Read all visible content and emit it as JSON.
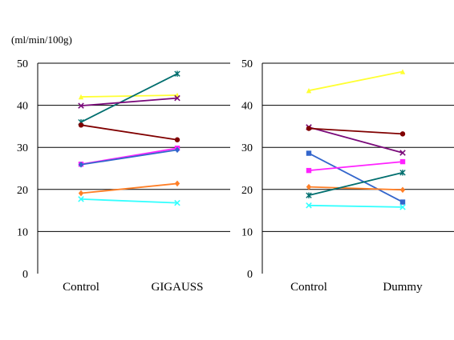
{
  "unit_label": "(ml/min/100g)",
  "chart_data": [
    {
      "type": "line",
      "categories": [
        "Control",
        "GIGAUSS"
      ],
      "ylim": [
        0,
        50
      ],
      "yticks": [
        0,
        10,
        20,
        30,
        40,
        50
      ],
      "ylabel": "(ml/min/100g)",
      "grid": true,
      "series": [
        {
          "color": "#ffff33",
          "marker": "triangle",
          "values": [
            42.0,
            42.4
          ]
        },
        {
          "color": "#006e6e",
          "marker": "star",
          "values": [
            36.0,
            47.5
          ]
        },
        {
          "color": "#7a0a7a",
          "marker": "x",
          "values": [
            39.9,
            41.7
          ]
        },
        {
          "color": "#800000",
          "marker": "circle",
          "values": [
            35.3,
            31.8
          ]
        },
        {
          "color": "#ff22ff",
          "marker": "square",
          "values": [
            26.0,
            29.8
          ]
        },
        {
          "color": "#3366cc",
          "marker": "diamond",
          "values": [
            25.9,
            29.4
          ]
        },
        {
          "color": "#ff7f27",
          "marker": "diamond",
          "values": [
            19.1,
            21.4
          ]
        },
        {
          "color": "#33ffff",
          "marker": "x",
          "values": [
            17.7,
            16.8
          ]
        }
      ]
    },
    {
      "type": "line",
      "categories": [
        "Control",
        "Dummy"
      ],
      "ylim": [
        0,
        50
      ],
      "yticks": [
        0,
        10,
        20,
        30,
        40,
        50
      ],
      "grid": true,
      "series": [
        {
          "color": "#ffff33",
          "marker": "triangle",
          "values": [
            43.5,
            48.0
          ]
        },
        {
          "color": "#7a0a7a",
          "marker": "x",
          "values": [
            34.8,
            28.7
          ]
        },
        {
          "color": "#800000",
          "marker": "circle",
          "values": [
            34.5,
            33.2
          ]
        },
        {
          "color": "#3366cc",
          "marker": "square",
          "values": [
            28.6,
            17.0
          ]
        },
        {
          "color": "#ff22ff",
          "marker": "square",
          "values": [
            24.5,
            26.6
          ]
        },
        {
          "color": "#ff7f27",
          "marker": "diamond",
          "values": [
            20.6,
            19.9
          ]
        },
        {
          "color": "#006e6e",
          "marker": "star",
          "values": [
            18.6,
            24.0
          ]
        },
        {
          "color": "#33ffff",
          "marker": "x",
          "values": [
            16.2,
            15.8
          ]
        }
      ]
    }
  ]
}
